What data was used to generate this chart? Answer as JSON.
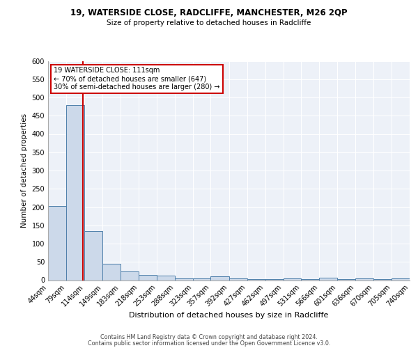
{
  "title1": "19, WATERSIDE CLOSE, RADCLIFFE, MANCHESTER, M26 2QP",
  "title2": "Size of property relative to detached houses in Radcliffe",
  "xlabel": "Distribution of detached houses by size in Radcliffe",
  "ylabel": "Number of detached properties",
  "bar_values": [
    203,
    480,
    135,
    44,
    24,
    14,
    12,
    4,
    4,
    10,
    4,
    2,
    2,
    5,
    2,
    7,
    2,
    5,
    2,
    5
  ],
  "bar_labels": [
    "44sqm",
    "79sqm",
    "114sqm",
    "149sqm",
    "183sqm",
    "218sqm",
    "253sqm",
    "288sqm",
    "323sqm",
    "357sqm",
    "392sqm",
    "427sqm",
    "462sqm",
    "497sqm",
    "531sqm",
    "566sqm",
    "601sqm",
    "636sqm",
    "670sqm",
    "705sqm",
    "740sqm"
  ],
  "bar_color": "#ccd9ea",
  "bar_edge_color": "#4e7faa",
  "property_line_color": "#cc0000",
  "property_line_x": 111,
  "annotation_text": "19 WATERSIDE CLOSE: 111sqm\n← 70% of detached houses are smaller (647)\n30% of semi-detached houses are larger (280) →",
  "annotation_box_facecolor": "#ffffff",
  "annotation_box_edgecolor": "#cc0000",
  "ylim": [
    0,
    600
  ],
  "yticks": [
    0,
    50,
    100,
    150,
    200,
    250,
    300,
    350,
    400,
    450,
    500,
    550,
    600
  ],
  "bin_edges": [
    44,
    79,
    114,
    149,
    183,
    218,
    253,
    288,
    323,
    357,
    392,
    427,
    462,
    497,
    531,
    566,
    601,
    636,
    670,
    705,
    740
  ],
  "footer1": "Contains HM Land Registry data © Crown copyright and database right 2024.",
  "footer2": "Contains public sector information licensed under the Open Government Licence v3.0.",
  "bg_color": "#edf1f8",
  "grid_color": "#ffffff",
  "title1_fontsize": 8.5,
  "title2_fontsize": 7.5,
  "xlabel_fontsize": 8,
  "ylabel_fontsize": 7.5,
  "tick_fontsize": 7,
  "footer_fontsize": 5.8,
  "annot_fontsize": 7
}
